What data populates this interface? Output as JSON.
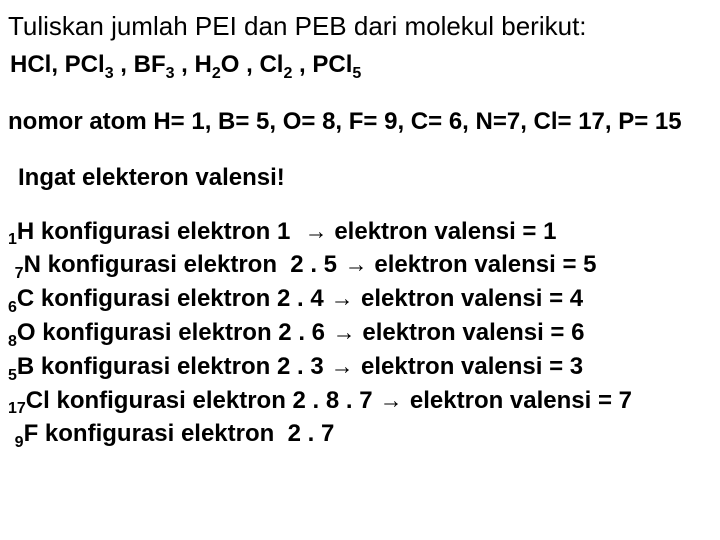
{
  "title": "Tuliskan jumlah PEI dan PEB dari molekul berikut:",
  "molecules_line": {
    "items": [
      {
        "pre": "HCl,"
      },
      {
        "pre": "PCl",
        "sub": "3",
        "post": " ,"
      },
      {
        "pre": "BF",
        "sub": "3",
        "post": " ,"
      },
      {
        "pre": "H",
        "sub": "2",
        "post": "O ,"
      },
      {
        "pre": "Cl",
        "sub": "2",
        "post": " ,"
      },
      {
        "pre": "PCl",
        "sub": "5"
      }
    ]
  },
  "atomnums": "nomor atom H= 1, B= 5, O= 8, F= 9, C= 6, N=7, Cl= 17, P= 15",
  "remember": "Ingat elekteron valensi!",
  "configs": [
    {
      "presub": "1",
      "elem": "H",
      "text": " konfigurasi elektron 1  ",
      "after": " elektron valensi = 1",
      "arrow": true
    },
    {
      "presub": "7",
      "elem": "N",
      "text": " konfigurasi elektron  2 . 5 ",
      "after": " elektron valensi = 5",
      "arrow": true,
      "lead": " "
    },
    {
      "presub": "6",
      "elem": "C",
      "text": " konfigurasi elektron 2 . 4 ",
      "after": " elektron valensi = 4",
      "arrow": true
    },
    {
      "presub": "8",
      "elem": "O",
      "text": " konfigurasi elektron 2 . 6 ",
      "after": " elektron valensi = 6",
      "arrow": true
    },
    {
      "presub": "5",
      "elem": "B",
      "text": " konfigurasi elektron 2 . 3 ",
      "after": " elektron valensi = 3",
      "arrow": true
    },
    {
      "presub": "17",
      "elem": "Cl",
      "text": " konfigurasi elektron 2 . 8 . 7 ",
      "after": " elektron valensi = 7",
      "arrow": true
    },
    {
      "presub": "9",
      "elem": "F",
      "text": " konfigurasi elektron  2 . 7",
      "after": "",
      "arrow": false,
      "lead": " "
    }
  ],
  "arrow_glyph": "→",
  "style": {
    "title_fontsize": 26,
    "body_fontsize": 24,
    "sub_fontsize": 16,
    "font_family": "Arial",
    "text_color": "#000000",
    "background_color": "#ffffff"
  }
}
